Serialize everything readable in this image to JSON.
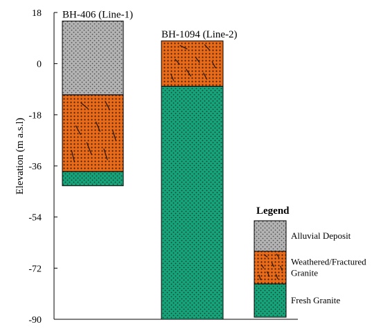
{
  "chart_data": {
    "type": "bar",
    "ylabel": "Elevation (m a.s.l)",
    "ylim": [
      -90,
      18
    ],
    "yticks": [
      18,
      0,
      -18,
      -36,
      -54,
      -72,
      -90
    ],
    "boreholes": [
      {
        "label": "BH-406 (Line-1)",
        "layers": [
          {
            "material": "Alluvial Deposit",
            "top": 15,
            "bottom": -11
          },
          {
            "material": "Weathered/Fractured Granite",
            "top": -11,
            "bottom": -38
          },
          {
            "material": "Fresh Granite",
            "top": -38,
            "bottom": -43
          }
        ]
      },
      {
        "label": "BH-1094 (Line-2)",
        "layers": [
          {
            "material": "Weathered/Fractured Granite",
            "top": 8,
            "bottom": -8
          },
          {
            "material": "Fresh Granite",
            "top": -8,
            "bottom": -90
          }
        ]
      }
    ]
  },
  "legend": {
    "title": "Legend",
    "items": [
      {
        "label_lines": [
          "Alluvial Deposit"
        ],
        "pattern": "alluvial"
      },
      {
        "label_lines": [
          "Weathered/Fractured",
          "Granite"
        ],
        "pattern": "weathered"
      },
      {
        "label_lines": [
          "Fresh Granite"
        ],
        "pattern": "fresh"
      }
    ]
  },
  "colors": {
    "alluvial": "#b3b3b3",
    "weathered": "#ea6a18",
    "fresh": "#17a37a",
    "border": "#000000"
  }
}
